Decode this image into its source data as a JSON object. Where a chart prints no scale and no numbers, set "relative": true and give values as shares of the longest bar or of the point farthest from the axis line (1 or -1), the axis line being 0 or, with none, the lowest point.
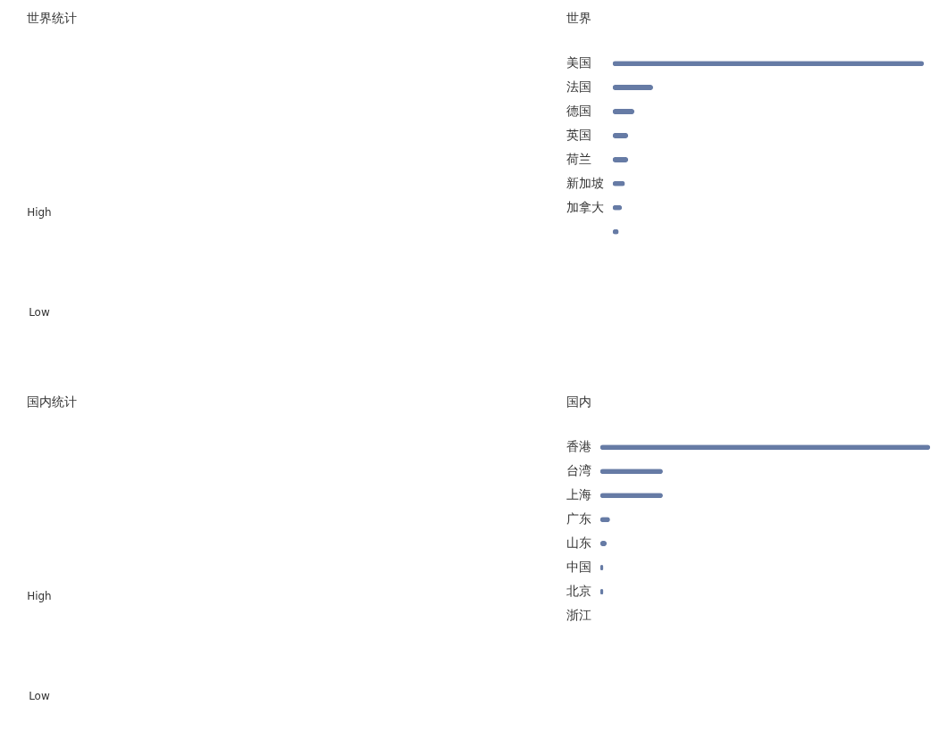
{
  "chart_data": [
    {
      "type": "other",
      "title": "世界统计",
      "annotations": [
        "High",
        "Low"
      ]
    },
    {
      "type": "bar",
      "orientation": "horizontal",
      "relative": true,
      "title": "世界",
      "categories": [
        "美国",
        "法国",
        "德国",
        "英国",
        "荷兰",
        "新加坡",
        "加拿大",
        null
      ],
      "values": [
        1,
        0.13,
        0.07,
        0.05,
        0.05,
        0.04,
        0.03,
        0.02
      ],
      "color": "#667ba5"
    },
    {
      "type": "other",
      "title": "国内统计",
      "annotations": [
        "High",
        "Low"
      ]
    },
    {
      "type": "bar",
      "orientation": "horizontal",
      "relative": true,
      "title": "国内",
      "categories": [
        "香港",
        "台湾",
        "上海",
        "广东",
        "山东",
        "中国",
        "北京",
        "浙江"
      ],
      "values": [
        1,
        0.19,
        0.19,
        0.03,
        0.02,
        0.01,
        0.01,
        0
      ],
      "color": "#667ba5"
    }
  ]
}
